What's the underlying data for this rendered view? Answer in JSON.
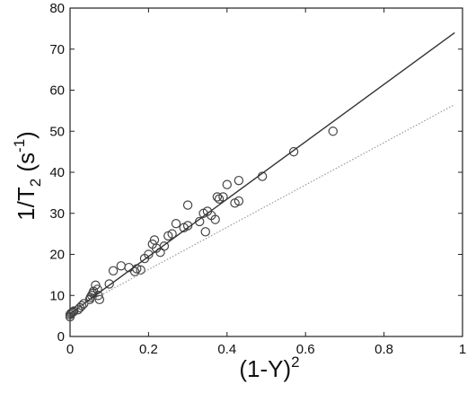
{
  "chart_data": {
    "type": "scatter",
    "xlabel": {
      "base": "(1-Y)",
      "sup": "2"
    },
    "ylabel": {
      "pre": "1/T",
      "sub": "2",
      "mid": " (s",
      "sup": "-1",
      "post": ")"
    },
    "xlim": [
      0,
      1
    ],
    "ylim": [
      0,
      80
    ],
    "x_ticks": [
      "0",
      "0.2",
      "0.4",
      "0.6",
      "0.8",
      "1"
    ],
    "y_ticks": [
      "0",
      "10",
      "20",
      "30",
      "40",
      "50",
      "60",
      "70",
      "80"
    ],
    "grid": false,
    "series": [
      {
        "style": "markers",
        "marker": "open-circle",
        "color": "#444444",
        "points": [
          [
            0.0,
            4.8
          ],
          [
            0.0,
            5.3
          ],
          [
            0.002,
            5.6
          ],
          [
            0.005,
            5.8
          ],
          [
            0.008,
            6.0
          ],
          [
            0.01,
            6.2
          ],
          [
            0.02,
            6.5
          ],
          [
            0.025,
            7.0
          ],
          [
            0.03,
            7.5
          ],
          [
            0.035,
            8.0
          ],
          [
            0.05,
            9.0
          ],
          [
            0.052,
            9.5
          ],
          [
            0.055,
            10.0
          ],
          [
            0.058,
            10.5
          ],
          [
            0.06,
            11.0
          ],
          [
            0.065,
            12.5
          ],
          [
            0.07,
            11.5
          ],
          [
            0.072,
            10.0
          ],
          [
            0.075,
            9.0
          ],
          [
            0.1,
            12.8
          ],
          [
            0.11,
            16.0
          ],
          [
            0.13,
            17.2
          ],
          [
            0.15,
            16.8
          ],
          [
            0.165,
            15.8
          ],
          [
            0.17,
            16.5
          ],
          [
            0.18,
            16.2
          ],
          [
            0.19,
            19.0
          ],
          [
            0.2,
            20.0
          ],
          [
            0.21,
            22.5
          ],
          [
            0.215,
            23.5
          ],
          [
            0.22,
            21.5
          ],
          [
            0.23,
            20.5
          ],
          [
            0.24,
            22.0
          ],
          [
            0.25,
            24.5
          ],
          [
            0.26,
            25.0
          ],
          [
            0.27,
            27.5
          ],
          [
            0.29,
            26.5
          ],
          [
            0.3,
            32.0
          ],
          [
            0.3,
            27.0
          ],
          [
            0.33,
            28.0
          ],
          [
            0.34,
            30.0
          ],
          [
            0.345,
            25.5
          ],
          [
            0.35,
            30.5
          ],
          [
            0.36,
            29.5
          ],
          [
            0.37,
            28.5
          ],
          [
            0.375,
            34.0
          ],
          [
            0.38,
            33.5
          ],
          [
            0.39,
            34.0
          ],
          [
            0.4,
            37.0
          ],
          [
            0.42,
            32.5
          ],
          [
            0.43,
            33.0
          ],
          [
            0.43,
            38.0
          ],
          [
            0.49,
            39.0
          ],
          [
            0.57,
            45.0
          ],
          [
            0.67,
            50.0
          ]
        ]
      },
      {
        "style": "solid-line",
        "color": "#333333",
        "x": [
          0.0,
          0.98
        ],
        "y": [
          5.5,
          74.0
        ]
      },
      {
        "style": "dotted-line",
        "color": "#999999",
        "x": [
          0.0,
          0.98
        ],
        "y": [
          6.0,
          56.5
        ]
      }
    ]
  }
}
